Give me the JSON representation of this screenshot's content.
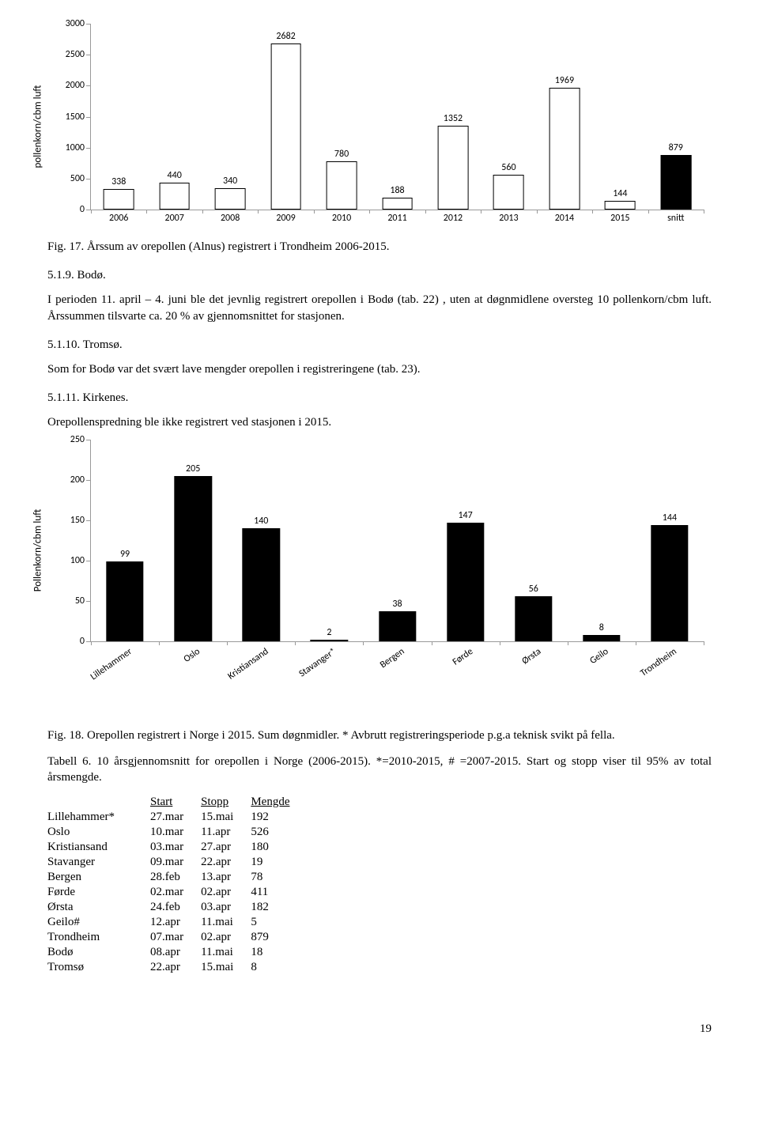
{
  "chart1": {
    "type": "bar",
    "ylabel": "pollenkorn/cbm luft",
    "ymax": 3000,
    "ytick_step": 500,
    "bar_border": "#000000",
    "bar_fill_default": "#ffffff",
    "bar_fill_highlight": "#000000",
    "bars": [
      {
        "label": "2006",
        "value": 338,
        "fill": "#ffffff"
      },
      {
        "label": "2007",
        "value": 440,
        "fill": "#ffffff"
      },
      {
        "label": "2008",
        "value": 340,
        "fill": "#ffffff"
      },
      {
        "label": "2009",
        "value": 2682,
        "fill": "#ffffff"
      },
      {
        "label": "2010",
        "value": 780,
        "fill": "#ffffff"
      },
      {
        "label": "2011",
        "value": 188,
        "fill": "#ffffff"
      },
      {
        "label": "2012",
        "value": 1352,
        "fill": "#ffffff"
      },
      {
        "label": "2013",
        "value": 560,
        "fill": "#ffffff"
      },
      {
        "label": "2014",
        "value": 1969,
        "fill": "#ffffff"
      },
      {
        "label": "2015",
        "value": 144,
        "fill": "#ffffff"
      },
      {
        "label": "snitt",
        "value": 879,
        "fill": "#000000"
      }
    ]
  },
  "caption1": "Fig. 17. Årssum av orepollen (Alnus) registrert i Trondheim 2006-2015.",
  "sec_519_title": "5.1.9. Bodø.",
  "sec_519_body": "I perioden 11. april – 4. juni ble det jevnlig registrert orepollen i Bodø  (tab. 22) , uten at døgnmidlene oversteg 10 pollenkorn/cbm luft. Årssummen tilsvarte ca. 20 % av gjennomsnittet for stasjonen.",
  "sec_5110_title": "5.1.10. Tromsø.",
  "sec_5110_body": "Som for Bodø var det svært lave mengder orepollen i registreringene (tab. 23).",
  "sec_5111_title": "5.1.11. Kirkenes.",
  "sec_5111_body": "Orepollenspredning ble ikke registrert ved stasjonen i 2015.",
  "chart2": {
    "type": "bar",
    "ylabel": "Pollenkorn/cbm luft",
    "ymax": 250,
    "ytick_step": 50,
    "bar_fill": "#000000",
    "bars": [
      {
        "label": "Lillehammer",
        "value": 99
      },
      {
        "label": "Oslo",
        "value": 205
      },
      {
        "label": "Kristiansand",
        "value": 140
      },
      {
        "label": "Stavanger*",
        "value": 2
      },
      {
        "label": "Bergen",
        "value": 38
      },
      {
        "label": "Førde",
        "value": 147
      },
      {
        "label": "Ørsta",
        "value": 56
      },
      {
        "label": "Geilo",
        "value": 8
      },
      {
        "label": "Trondheim",
        "value": 144
      }
    ]
  },
  "caption2": "Fig. 18. Orepollen registrert i Norge i 2015. Sum døgnmidler. * Avbrutt registreringsperiode p.g.a teknisk svikt på fella.",
  "caption3": "Tabell 6. 10 årsgjennomsnitt for orepollen i Norge (2006-2015).  *=2010-2015, # =2007-2015. Start og stopp viser til 95% av total årsmengde.",
  "table": {
    "columns": [
      "",
      "Start",
      "Stopp",
      "Mengde"
    ],
    "rows": [
      [
        "Lillehammer*",
        "27.mar",
        "15.mai",
        "192"
      ],
      [
        "Oslo",
        "10.mar",
        "11.apr",
        "526"
      ],
      [
        "Kristiansand",
        "03.mar",
        "27.apr",
        "180"
      ],
      [
        "Stavanger",
        "09.mar",
        "22.apr",
        "19"
      ],
      [
        "Bergen",
        "28.feb",
        "13.apr",
        "78"
      ],
      [
        "Førde",
        "02.mar",
        "02.apr",
        "411"
      ],
      [
        "Ørsta",
        "24.feb",
        "03.apr",
        "182"
      ],
      [
        "Geilo#",
        "12.apr",
        "11.mai",
        "5"
      ],
      [
        "Trondheim",
        "07.mar",
        "02.apr",
        "879"
      ],
      [
        "Bodø",
        "08.apr",
        "11.mai",
        "18"
      ],
      [
        "Tromsø",
        "22.apr",
        "15.mai",
        "8"
      ]
    ]
  },
  "page_number": "19"
}
